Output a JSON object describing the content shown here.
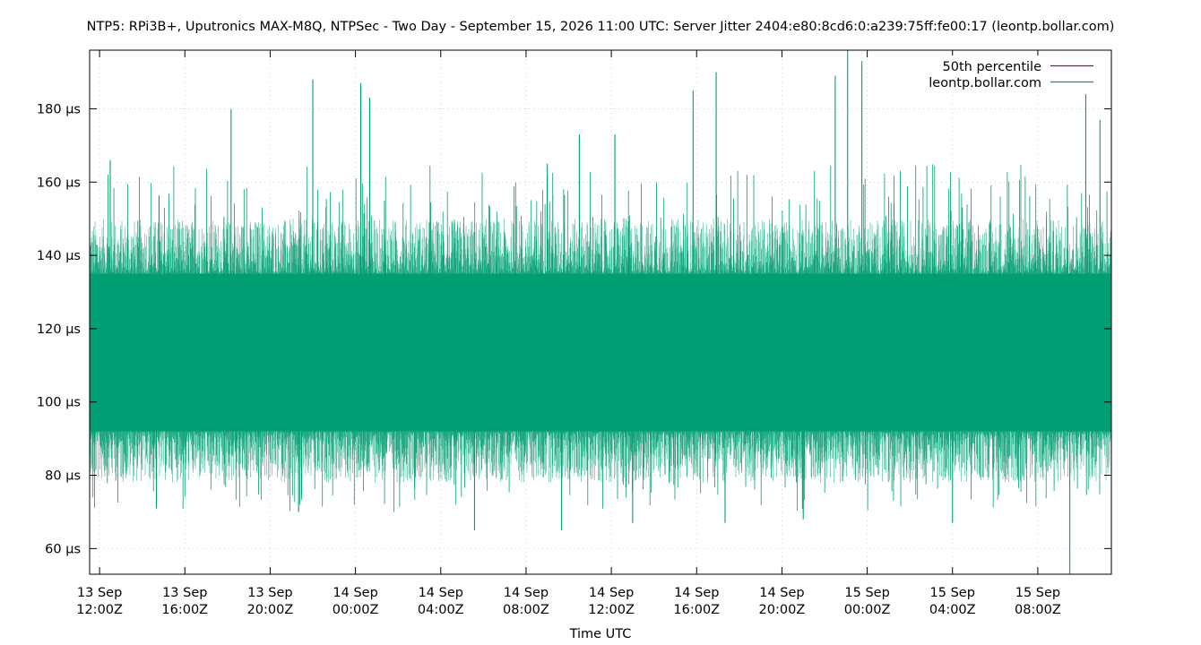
{
  "chart_data": {
    "type": "line",
    "title": "NTP5: RPi3B+, Uputronics MAX-M8Q, NTPSec - Two Day - September 15, 2026 11:00 UTC: Server Jitter 2404:e80:8cd6:0:a239:75ff:fe00:17 (leontp.bollar.com)",
    "xlabel": "Time UTC",
    "ylabel": "",
    "y_unit": "µs",
    "ylim": [
      53,
      196
    ],
    "yticks": [
      {
        "value": 60,
        "label": "60 µs"
      },
      {
        "value": 80,
        "label": "80 µs"
      },
      {
        "value": 100,
        "label": "100 µs"
      },
      {
        "value": 120,
        "label": "120 µs"
      },
      {
        "value": 140,
        "label": "140 µs"
      },
      {
        "value": 160,
        "label": "160 µs"
      },
      {
        "value": 180,
        "label": "180 µs"
      }
    ],
    "xlim": [
      "2026-09-13T11:32Z",
      "2026-09-15T11:27Z"
    ],
    "xticks": [
      {
        "value": "2026-09-13T12:00Z",
        "line1": "13 Sep",
        "line2": "12:00Z"
      },
      {
        "value": "2026-09-13T16:00Z",
        "line1": "13 Sep",
        "line2": "16:00Z"
      },
      {
        "value": "2026-09-13T20:00Z",
        "line1": "13 Sep",
        "line2": "20:00Z"
      },
      {
        "value": "2026-09-14T00:00Z",
        "line1": "14 Sep",
        "line2": "00:00Z"
      },
      {
        "value": "2026-09-14T04:00Z",
        "line1": "14 Sep",
        "line2": "04:00Z"
      },
      {
        "value": "2026-09-14T08:00Z",
        "line1": "14 Sep",
        "line2": "08:00Z"
      },
      {
        "value": "2026-09-14T12:00Z",
        "line1": "14 Sep",
        "line2": "12:00Z"
      },
      {
        "value": "2026-09-14T16:00Z",
        "line1": "14 Sep",
        "line2": "16:00Z"
      },
      {
        "value": "2026-09-14T20:00Z",
        "line1": "14 Sep",
        "line2": "20:00Z"
      },
      {
        "value": "2026-09-15T00:00Z",
        "line1": "15 Sep",
        "line2": "00:00Z"
      },
      {
        "value": "2026-09-15T04:00Z",
        "line1": "15 Sep",
        "line2": "04:00Z"
      },
      {
        "value": "2026-09-15T08:00Z",
        "line1": "15 Sep",
        "line2": "08:00Z"
      }
    ],
    "grid": true,
    "legend_position": "top-right",
    "series": [
      {
        "name": "50th percentile",
        "color": "#94008f",
        "values": []
      },
      {
        "name": "leontp.bollar.com",
        "color": "#009e73",
        "band": {
          "dense_low": 92,
          "dense_high": 135,
          "typical_low": 78,
          "typical_high": 150
        },
        "spikes": [
          {
            "t": "2026-09-13T12:30Z",
            "value": 166
          },
          {
            "t": "2026-09-13T18:10Z",
            "value": 180
          },
          {
            "t": "2026-09-13T22:00Z",
            "value": 188
          },
          {
            "t": "2026-09-14T00:15Z",
            "value": 187
          },
          {
            "t": "2026-09-14T00:40Z",
            "value": 183
          },
          {
            "t": "2026-09-14T09:00Z",
            "value": 165
          },
          {
            "t": "2026-09-14T10:30Z",
            "value": 173
          },
          {
            "t": "2026-09-14T12:10Z",
            "value": 173
          },
          {
            "t": "2026-09-14T15:50Z",
            "value": 185
          },
          {
            "t": "2026-09-14T16:55Z",
            "value": 190
          },
          {
            "t": "2026-09-14T22:30Z",
            "value": 189
          },
          {
            "t": "2026-09-14T23:05Z",
            "value": 196
          },
          {
            "t": "2026-09-14T23:45Z",
            "value": 193
          },
          {
            "t": "2026-09-15T10:15Z",
            "value": 184
          },
          {
            "t": "2026-09-15T10:55Z",
            "value": 177
          }
        ],
        "dips": [
          {
            "t": "2026-09-13T14:40Z",
            "value": 71
          },
          {
            "t": "2026-09-13T21:20Z",
            "value": 70
          },
          {
            "t": "2026-09-14T05:35Z",
            "value": 65
          },
          {
            "t": "2026-09-14T09:40Z",
            "value": 65
          },
          {
            "t": "2026-09-14T13:00Z",
            "value": 67
          },
          {
            "t": "2026-09-14T17:20Z",
            "value": 67
          },
          {
            "t": "2026-09-14T21:00Z",
            "value": 68
          },
          {
            "t": "2026-09-15T04:00Z",
            "value": 67
          },
          {
            "t": "2026-09-15T09:30Z",
            "value": 53
          }
        ]
      }
    ]
  }
}
